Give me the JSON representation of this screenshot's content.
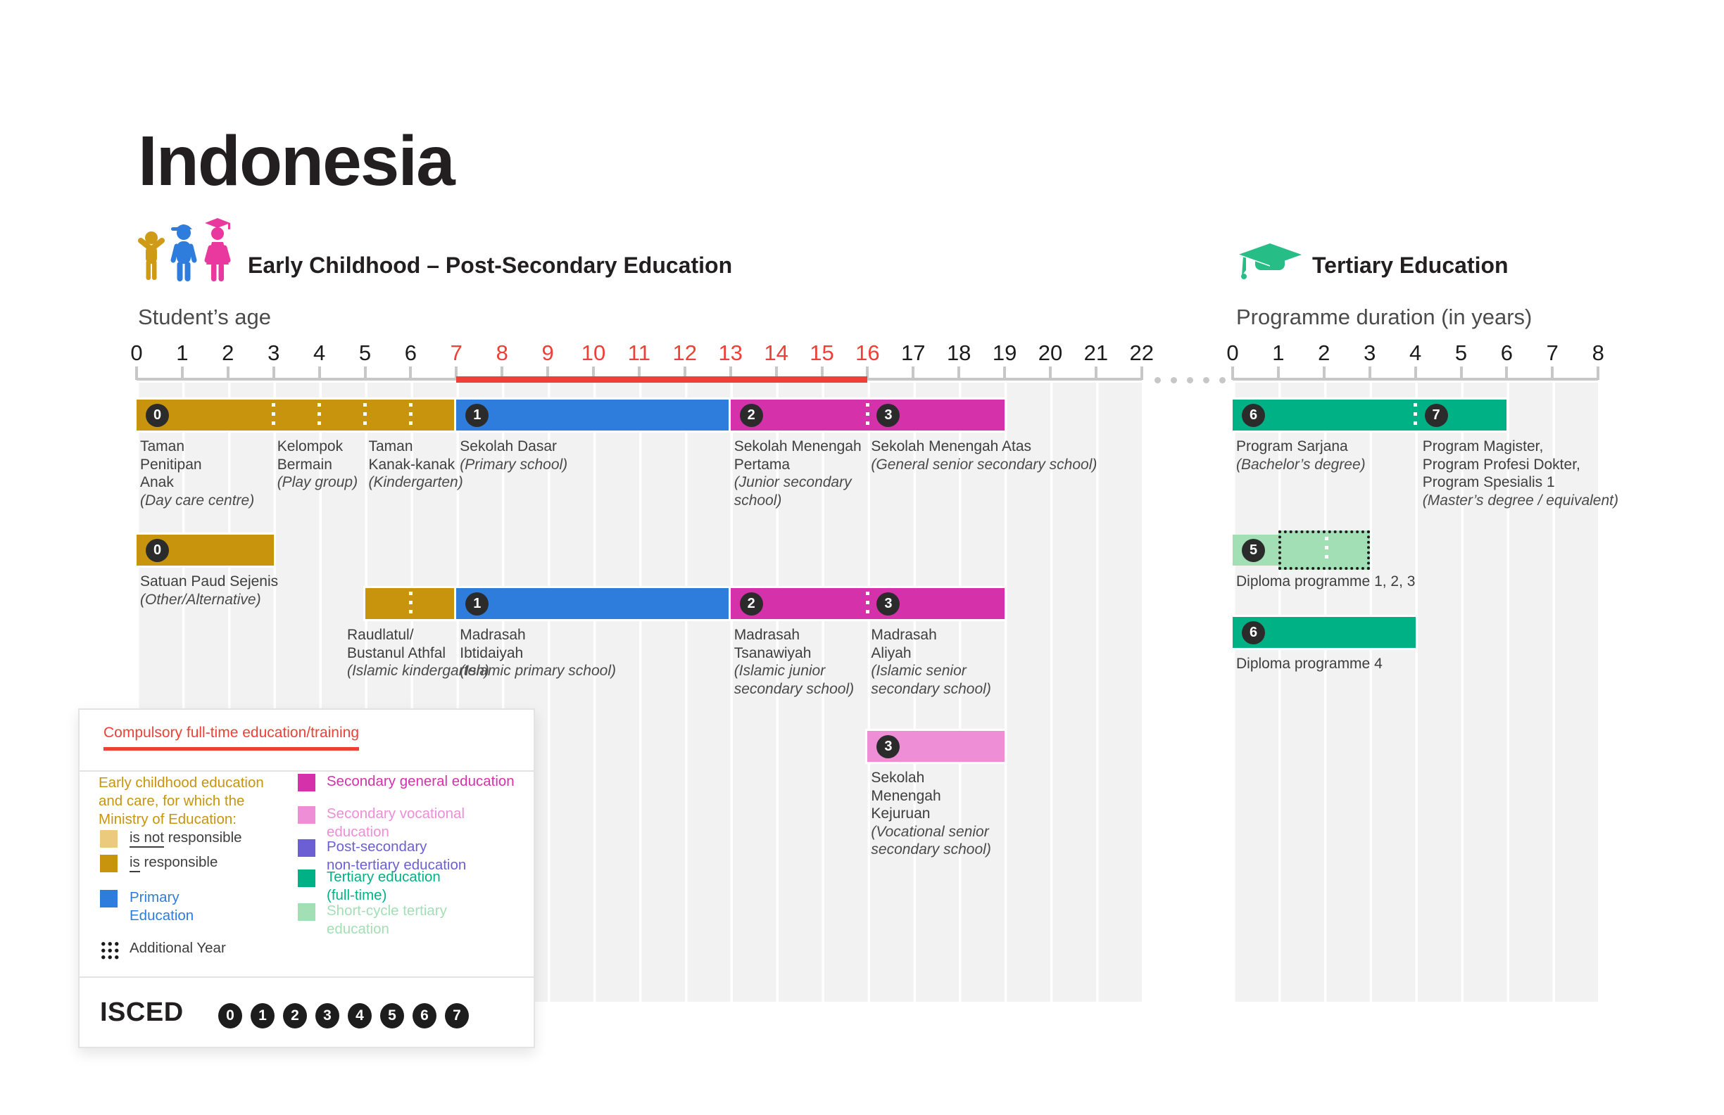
{
  "title": "Indonesia",
  "sections": {
    "main": {
      "heading": "Early Childhood – Post-Secondary Education",
      "axis_label": "Student’s age",
      "axis": {
        "min": 0,
        "max": 22,
        "compulsory_start": 7,
        "compulsory_end": 16
      }
    },
    "tertiary": {
      "heading": "Tertiary Education",
      "axis_label": "Programme duration (in years)",
      "axis": {
        "min": 0,
        "max": 8
      }
    }
  },
  "continuation_dots": 5,
  "colors": {
    "gold": "#c8940e",
    "lightGold": "#ecca7d",
    "blue": "#2e7cdb",
    "magenta": "#d531ab",
    "pink": "#ee8ed6",
    "purple": "#6c5fd3",
    "green": "#00b185",
    "lightGreen": "#a3dfb5",
    "red": "#ee4036",
    "badge": "#2b2b2b"
  },
  "bars": [
    {
      "panel": "main",
      "row": 1,
      "start": 0,
      "end": 7,
      "color": "gold",
      "badges": [
        {
          "level": "0",
          "at": 0
        }
      ],
      "dividers": [
        3,
        4,
        5,
        6
      ]
    },
    {
      "panel": "main",
      "row": 1,
      "start": 7,
      "end": 13,
      "color": "blue",
      "badges": [
        {
          "level": "1",
          "at": 7
        }
      ],
      "dividers": []
    },
    {
      "panel": "main",
      "row": 1,
      "start": 13,
      "end": 19,
      "color": "magenta",
      "badges": [
        {
          "level": "2",
          "at": 13
        },
        {
          "level": "3",
          "at": 16
        }
      ],
      "dividers": [
        16
      ]
    },
    {
      "panel": "main",
      "row": 2,
      "start": 0,
      "end": 3,
      "color": "gold",
      "badges": [
        {
          "level": "0",
          "at": 0
        }
      ],
      "dividers": []
    },
    {
      "panel": "main",
      "row": 3,
      "start": 5,
      "end": 7,
      "color": "gold",
      "badges": [],
      "dividers": [
        6
      ]
    },
    {
      "panel": "main",
      "row": 3,
      "start": 7,
      "end": 13,
      "color": "blue",
      "badges": [
        {
          "level": "1",
          "at": 7
        }
      ],
      "dividers": []
    },
    {
      "panel": "main",
      "row": 3,
      "start": 13,
      "end": 19,
      "color": "magenta",
      "badges": [
        {
          "level": "2",
          "at": 13
        },
        {
          "level": "3",
          "at": 16
        }
      ],
      "dividers": [
        16
      ]
    },
    {
      "panel": "main",
      "row": 4,
      "start": 16,
      "end": 19,
      "color": "pink",
      "badges": [
        {
          "level": "3",
          "at": 16
        }
      ],
      "dividers": []
    },
    {
      "panel": "tert",
      "row": 1,
      "start": 0,
      "end": 6,
      "color": "green",
      "badges": [
        {
          "level": "6",
          "at": 0
        },
        {
          "level": "7",
          "at": 4
        }
      ],
      "dividers": [
        4
      ]
    },
    {
      "panel": "tert",
      "row": 2,
      "start": 0,
      "end": 1,
      "color": "lightGreen",
      "badges": [
        {
          "level": "5",
          "at": 0
        }
      ],
      "dividers": [],
      "noline": true
    },
    {
      "panel": "tert",
      "row": 2,
      "start": 1,
      "end": 3,
      "color": "lightGreen",
      "badges": [],
      "dividers": [
        2
      ],
      "dotted_outline": true
    },
    {
      "panel": "tert",
      "row": 3,
      "start": 0,
      "end": 4,
      "color": "green",
      "badges": [
        {
          "level": "6",
          "at": 0
        }
      ],
      "dividers": []
    }
  ],
  "labels": [
    {
      "panel": "main",
      "row": 1,
      "at": 0,
      "name": "Taman\nPenitipan\nAnak",
      "sub": "(Day care centre)"
    },
    {
      "panel": "main",
      "row": 1,
      "at": 3,
      "name": "Kelompok\nBermain",
      "sub": "(Play group)"
    },
    {
      "panel": "main",
      "row": 1,
      "at": 5,
      "name": "Taman\nKanak-kanak",
      "sub": "(Kindergarten)"
    },
    {
      "panel": "main",
      "row": 1,
      "at": 7,
      "name": "Sekolah Dasar",
      "sub": "(Primary school)"
    },
    {
      "panel": "main",
      "row": 1,
      "at": 13,
      "name": "Sekolah Menengah\nPertama",
      "sub": "(Junior secondary\nschool)"
    },
    {
      "panel": "main",
      "row": 1,
      "at": 16,
      "name": "Sekolah Menengah Atas",
      "sub": "(General senior secondary school)"
    },
    {
      "panel": "main",
      "row": 2,
      "at": 0,
      "name": "Satuan Paud Sejenis",
      "sub": "(Other/Alternative)"
    },
    {
      "panel": "main",
      "row": 3,
      "at": 4.53,
      "name": "Raudlatul/\nBustanul Athfal",
      "sub": "(Islamic kindergarten)"
    },
    {
      "panel": "main",
      "row": 3,
      "at": 7,
      "name": "Madrasah\nIbtidaiyah",
      "sub": "(Islamic primary school)"
    },
    {
      "panel": "main",
      "row": 3,
      "at": 13,
      "name": "Madrasah\nTsanawiyah",
      "sub": "(Islamic junior\nsecondary school)"
    },
    {
      "panel": "main",
      "row": 3,
      "at": 16,
      "name": "Madrasah\nAliyah",
      "sub": "(Islamic senior\nsecondary school)"
    },
    {
      "panel": "main",
      "row": 4,
      "at": 16,
      "name": "Sekolah\nMenengah\nKejuruan",
      "sub": "(Vocational senior\nsecondary school)"
    },
    {
      "panel": "tert",
      "row": 1,
      "at": 0,
      "name": "Program Sarjana",
      "sub": "(Bachelor’s degree)"
    },
    {
      "panel": "tert",
      "row": 1,
      "at": 4.08,
      "name": "Program Magister,\nProgram Profesi Dokter,\nProgram Spesialis 1",
      "sub": "(Master’s degree / equivalent)"
    },
    {
      "panel": "tert",
      "row": 2,
      "at": 0,
      "name": "Diploma programme 1, 2, 3",
      "sub": ""
    },
    {
      "panel": "tert",
      "row": 3,
      "at": 0,
      "name": "Diploma programme 4",
      "sub": ""
    }
  ],
  "legend": {
    "title": "Compulsory full-time education/training",
    "left_items": [
      {
        "kind": "para",
        "color": "gold",
        "text": "Early childhood education\nand care, for which the\nMinistry of Education:"
      },
      {
        "kind": "row",
        "swatch": "lightGold",
        "underline": "is not",
        "rest": " responsible"
      },
      {
        "kind": "row",
        "swatch": "gold",
        "underline": "is",
        "rest": " responsible"
      },
      {
        "kind": "row",
        "swatch": "blue",
        "color": "blue",
        "text": "Primary\nEducation"
      },
      {
        "kind": "row",
        "dots": true,
        "text": "Additional Year"
      }
    ],
    "right_items": [
      {
        "swatch": "magenta",
        "color": "magenta",
        "text": "Secondary general education"
      },
      {
        "swatch": "pink",
        "color": "pink",
        "text": "Secondary vocational\neducation"
      },
      {
        "swatch": "purple",
        "color": "purple",
        "text": "Post-secondary\nnon-tertiary education"
      },
      {
        "swatch": "green",
        "color": "green",
        "text": "Tertiary education\n(full-time)"
      },
      {
        "swatch": "lightGreen",
        "color": "lightGreen",
        "text": "Short-cycle tertiary\neducation"
      }
    ],
    "isced_label": "ISCED",
    "isced_levels": [
      "0",
      "1",
      "2",
      "3",
      "4",
      "5",
      "6",
      "7"
    ]
  }
}
